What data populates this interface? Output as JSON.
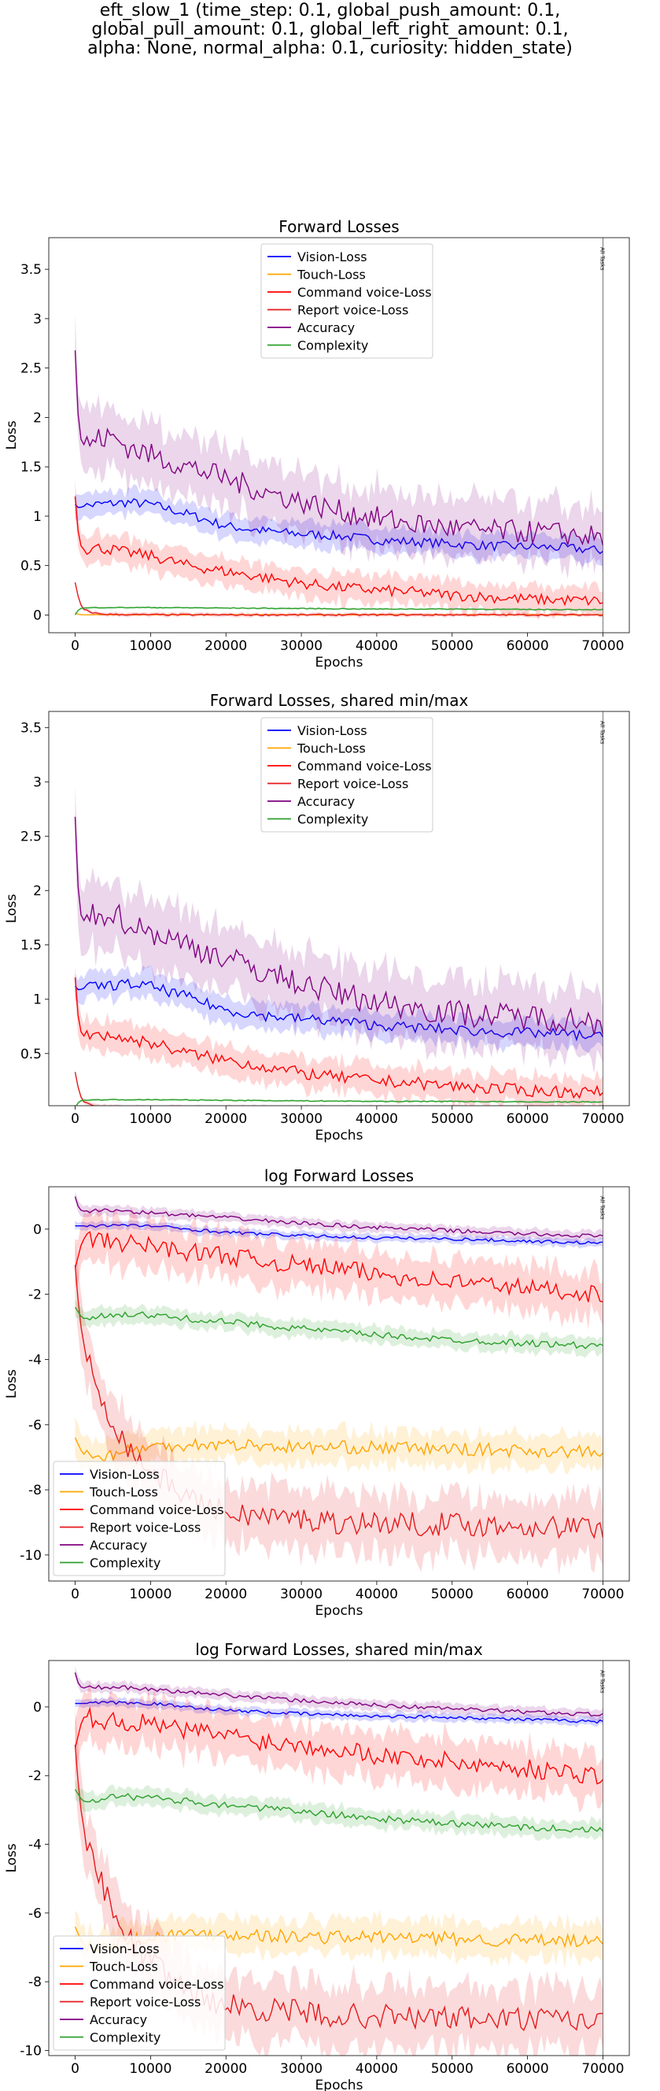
{
  "figure": {
    "suptitle": [
      "eft_slow_1 (time_step: 0.1, global_push_amount: 0.1,",
      "global_pull_amount: 0.1, global_left_right_amount: 0.1,",
      "alpha: None, normal_alpha: 0.1, curiosity: hidden_state)"
    ]
  },
  "chart_data": [
    {
      "type": "line",
      "title": "Forward Losses",
      "xlabel": "Epochs",
      "ylabel": "Loss",
      "xlim": [
        -3500,
        73500
      ],
      "ylim": [
        -0.18,
        3.82
      ],
      "xticks": [
        0,
        10000,
        20000,
        30000,
        40000,
        50000,
        60000,
        70000
      ],
      "yticks": [
        0.0,
        0.5,
        1.0,
        1.5,
        2.0,
        2.5,
        3.0,
        3.5
      ],
      "legend_position": "upper center",
      "vline": {
        "x": 70000,
        "label": "All Tasks"
      },
      "series": [
        {
          "name": "Vision-Loss",
          "color": "#0000ff",
          "x": [
            0,
            500,
            1000,
            3000,
            5000,
            7000,
            10000,
            15000,
            20000,
            25000,
            30000,
            35000,
            40000,
            45000,
            50000,
            55000,
            60000,
            65000,
            70000
          ],
          "y": [
            1.12,
            1.08,
            1.1,
            1.12,
            1.13,
            1.14,
            1.12,
            1.02,
            0.9,
            0.85,
            0.82,
            0.8,
            0.76,
            0.74,
            0.72,
            0.7,
            0.69,
            0.68,
            0.65
          ],
          "band": 0.12
        },
        {
          "name": "Touch-Loss",
          "color": "#ffa500",
          "x": [
            0,
            500,
            1000,
            3000,
            10000,
            20000,
            30000,
            40000,
            50000,
            60000,
            70000
          ],
          "y": [
            0.02,
            0.004,
            0.002,
            0.002,
            0.002,
            0.002,
            0.002,
            0.002,
            0.002,
            0.002,
            0.002
          ],
          "band": 0.004
        },
        {
          "name": "Command voice-Loss",
          "color": "#ff0000",
          "x": [
            0,
            500,
            1000,
            3000,
            5000,
            7000,
            10000,
            15000,
            20000,
            25000,
            30000,
            35000,
            40000,
            45000,
            50000,
            55000,
            60000,
            65000,
            70000
          ],
          "y": [
            1.2,
            0.75,
            0.66,
            0.68,
            0.66,
            0.63,
            0.6,
            0.5,
            0.44,
            0.38,
            0.32,
            0.28,
            0.25,
            0.23,
            0.2,
            0.18,
            0.16,
            0.15,
            0.14
          ],
          "band": 0.14
        },
        {
          "name": "Report voice-Loss",
          "color": "#e41a1c",
          "x": [
            0,
            500,
            1000,
            2000,
            3000,
            5000,
            10000,
            20000,
            30000,
            40000,
            50000,
            60000,
            70000
          ],
          "y": [
            0.33,
            0.15,
            0.06,
            0.03,
            0.012,
            0.005,
            0.002,
            0.001,
            0.001,
            0.001,
            0.001,
            0.001,
            0.001
          ],
          "band": 0.02
        },
        {
          "name": "Accuracy",
          "color": "#800080",
          "x": [
            0,
            500,
            1000,
            3000,
            5000,
            7000,
            10000,
            15000,
            20000,
            25000,
            30000,
            35000,
            40000,
            45000,
            50000,
            55000,
            60000,
            65000,
            70000
          ],
          "y": [
            2.68,
            1.85,
            1.72,
            1.78,
            1.8,
            1.7,
            1.62,
            1.5,
            1.38,
            1.25,
            1.15,
            1.05,
            0.98,
            0.92,
            0.88,
            0.85,
            0.84,
            0.82,
            0.78
          ],
          "band": 0.3
        },
        {
          "name": "Complexity",
          "color": "#2ca02c",
          "x": [
            0,
            500,
            1000,
            3000,
            10000,
            20000,
            30000,
            40000,
            50000,
            60000,
            70000
          ],
          "y": [
            0.0,
            0.06,
            0.07,
            0.075,
            0.075,
            0.07,
            0.065,
            0.06,
            0.06,
            0.055,
            0.055
          ],
          "band": 0.01
        }
      ]
    },
    {
      "type": "line",
      "title": "Forward Losses, shared min/max",
      "xlabel": "Epochs",
      "ylabel": "Loss",
      "xlim": [
        -3500,
        73500
      ],
      "ylim": [
        0.02,
        3.65
      ],
      "xticks": [
        0,
        10000,
        20000,
        30000,
        40000,
        50000,
        60000,
        70000
      ],
      "yticks": [
        0.5,
        1.0,
        1.5,
        2.0,
        2.5,
        3.0,
        3.5
      ],
      "legend_position": "upper center",
      "vline": {
        "x": 70000,
        "label": "All Tasks"
      },
      "series": [
        {
          "name": "Vision-Loss",
          "color": "#0000ff",
          "x": [
            0,
            500,
            1000,
            3000,
            5000,
            7000,
            10000,
            15000,
            20000,
            25000,
            30000,
            35000,
            40000,
            45000,
            50000,
            55000,
            60000,
            65000,
            70000
          ],
          "y": [
            1.12,
            1.08,
            1.1,
            1.12,
            1.13,
            1.14,
            1.12,
            1.02,
            0.9,
            0.85,
            0.82,
            0.8,
            0.76,
            0.74,
            0.72,
            0.7,
            0.69,
            0.68,
            0.65
          ],
          "band": 0.12
        },
        {
          "name": "Touch-Loss",
          "color": "#ffa500",
          "x": [
            0,
            500,
            1000,
            3000,
            10000,
            20000,
            30000,
            40000,
            50000,
            60000,
            70000
          ],
          "y": [
            0.02,
            0.004,
            0.002,
            0.002,
            0.002,
            0.002,
            0.002,
            0.002,
            0.002,
            0.002,
            0.002
          ],
          "band": 0.004
        },
        {
          "name": "Command voice-Loss",
          "color": "#ff0000",
          "x": [
            0,
            500,
            1000,
            3000,
            5000,
            7000,
            10000,
            15000,
            20000,
            25000,
            30000,
            35000,
            40000,
            45000,
            50000,
            55000,
            60000,
            65000,
            70000
          ],
          "y": [
            1.2,
            0.75,
            0.66,
            0.68,
            0.66,
            0.63,
            0.6,
            0.5,
            0.44,
            0.38,
            0.32,
            0.28,
            0.25,
            0.23,
            0.2,
            0.18,
            0.16,
            0.15,
            0.14
          ],
          "band": 0.14
        },
        {
          "name": "Report voice-Loss",
          "color": "#e41a1c",
          "x": [
            0,
            500,
            1000,
            2000,
            3000,
            5000,
            10000,
            20000,
            30000,
            40000,
            50000,
            60000,
            70000
          ],
          "y": [
            0.33,
            0.15,
            0.06,
            0.03,
            0.012,
            0.005,
            0.002,
            0.001,
            0.001,
            0.001,
            0.001,
            0.001,
            0.001
          ],
          "band": 0.02
        },
        {
          "name": "Accuracy",
          "color": "#800080",
          "x": [
            0,
            500,
            1000,
            3000,
            5000,
            7000,
            10000,
            15000,
            20000,
            25000,
            30000,
            35000,
            40000,
            45000,
            50000,
            55000,
            60000,
            65000,
            70000
          ],
          "y": [
            2.68,
            1.85,
            1.72,
            1.78,
            1.8,
            1.7,
            1.62,
            1.5,
            1.38,
            1.25,
            1.15,
            1.05,
            0.98,
            0.92,
            0.88,
            0.85,
            0.84,
            0.82,
            0.78
          ],
          "band": 0.3
        },
        {
          "name": "Complexity",
          "color": "#2ca02c",
          "x": [
            0,
            500,
            1000,
            3000,
            10000,
            20000,
            30000,
            40000,
            50000,
            60000,
            70000
          ],
          "y": [
            0.0,
            0.06,
            0.07,
            0.075,
            0.075,
            0.07,
            0.065,
            0.06,
            0.06,
            0.055,
            0.055
          ],
          "band": 0.01
        }
      ]
    },
    {
      "type": "line",
      "title": "log Forward Losses",
      "xlabel": "Epochs",
      "ylabel": "Loss",
      "xlim": [
        -3500,
        73500
      ],
      "ylim": [
        -10.8,
        1.3
      ],
      "xticks": [
        0,
        10000,
        20000,
        30000,
        40000,
        50000,
        60000,
        70000
      ],
      "yticks": [
        -10,
        -8,
        -6,
        -4,
        -2,
        0
      ],
      "legend_position": "lower left",
      "vline": {
        "x": 70000,
        "label": "All Tasks"
      },
      "series": [
        {
          "name": "Vision-Loss",
          "color": "#0000ff",
          "x": [
            0,
            1000,
            5000,
            10000,
            20000,
            30000,
            40000,
            50000,
            60000,
            70000
          ],
          "y": [
            0.1,
            0.1,
            0.12,
            0.1,
            -0.1,
            -0.2,
            -0.27,
            -0.3,
            -0.37,
            -0.43
          ],
          "band": 0.12
        },
        {
          "name": "Touch-Loss",
          "color": "#ffa500",
          "x": [
            0,
            1000,
            3000,
            5000,
            8000,
            10000,
            15000,
            20000,
            30000,
            40000,
            50000,
            60000,
            70000
          ],
          "y": [
            -6.4,
            -6.9,
            -7.0,
            -6.9,
            -6.75,
            -6.7,
            -6.6,
            -6.6,
            -6.7,
            -6.7,
            -6.75,
            -6.8,
            -6.85
          ],
          "band": 0.5
        },
        {
          "name": "Command voice-Loss",
          "color": "#ff0000",
          "x": [
            0,
            1000,
            5000,
            10000,
            15000,
            20000,
            25000,
            30000,
            35000,
            40000,
            45000,
            50000,
            55000,
            60000,
            65000,
            70000
          ],
          "y": [
            -1.2,
            -0.3,
            -0.4,
            -0.5,
            -0.7,
            -0.8,
            -1.0,
            -1.1,
            -1.2,
            -1.4,
            -1.5,
            -1.6,
            -1.7,
            -1.8,
            -1.9,
            -2.0
          ],
          "band": 0.7
        },
        {
          "name": "Report voice-Loss",
          "color": "#e41a1c",
          "x": [
            0,
            500,
            1000,
            2000,
            3000,
            4000,
            5000,
            7000,
            9000,
            11000,
            13000,
            15000,
            17000,
            19000,
            20000,
            25000,
            30000,
            35000,
            40000,
            45000,
            50000,
            55000,
            60000,
            65000,
            70000
          ],
          "y": [
            -1.1,
            -2.5,
            -3.4,
            -4.2,
            -4.9,
            -5.4,
            -5.9,
            -6.7,
            -7.2,
            -7.6,
            -7.9,
            -8.2,
            -8.5,
            -8.6,
            -8.7,
            -8.8,
            -8.9,
            -9.0,
            -9.0,
            -9.05,
            -9.05,
            -9.1,
            -9.1,
            -9.15,
            -9.15
          ],
          "band": 0.9
        },
        {
          "name": "Accuracy",
          "color": "#800080",
          "x": [
            0,
            500,
            1000,
            5000,
            10000,
            20000,
            30000,
            40000,
            50000,
            60000,
            70000
          ],
          "y": [
            1.0,
            0.62,
            0.55,
            0.58,
            0.5,
            0.35,
            0.18,
            0.05,
            -0.05,
            -0.15,
            -0.22
          ],
          "band": 0.15
        },
        {
          "name": "Complexity",
          "color": "#2ca02c",
          "x": [
            0,
            1000,
            5000,
            10000,
            20000,
            30000,
            40000,
            50000,
            60000,
            70000
          ],
          "y": [
            -2.4,
            -2.75,
            -2.6,
            -2.65,
            -2.85,
            -3.05,
            -3.25,
            -3.4,
            -3.5,
            -3.6
          ],
          "band": 0.25
        }
      ]
    },
    {
      "type": "line",
      "title": "log Forward Losses, shared min/max",
      "xlabel": "Epochs",
      "ylabel": "Loss",
      "xlim": [
        -3500,
        73500
      ],
      "ylim": [
        -10.15,
        1.35
      ],
      "xticks": [
        0,
        10000,
        20000,
        30000,
        40000,
        50000,
        60000,
        70000
      ],
      "yticks": [
        -10,
        -8,
        -6,
        -4,
        -2,
        0
      ],
      "legend_position": "lower left",
      "vline": {
        "x": 70000,
        "label": "All Tasks"
      },
      "series": [
        {
          "name": "Vision-Loss",
          "color": "#0000ff",
          "x": [
            0,
            1000,
            5000,
            10000,
            20000,
            30000,
            40000,
            50000,
            60000,
            70000
          ],
          "y": [
            0.1,
            0.1,
            0.12,
            0.1,
            -0.1,
            -0.2,
            -0.27,
            -0.3,
            -0.37,
            -0.43
          ],
          "band": 0.12
        },
        {
          "name": "Touch-Loss",
          "color": "#ffa500",
          "x": [
            0,
            1000,
            3000,
            5000,
            8000,
            10000,
            15000,
            20000,
            30000,
            40000,
            50000,
            60000,
            70000
          ],
          "y": [
            -6.4,
            -6.9,
            -7.0,
            -6.9,
            -6.75,
            -6.7,
            -6.6,
            -6.6,
            -6.7,
            -6.7,
            -6.75,
            -6.8,
            -6.85
          ],
          "band": 0.5
        },
        {
          "name": "Command voice-Loss",
          "color": "#ff0000",
          "x": [
            0,
            1000,
            5000,
            10000,
            15000,
            20000,
            25000,
            30000,
            35000,
            40000,
            45000,
            50000,
            55000,
            60000,
            65000,
            70000
          ],
          "y": [
            -1.2,
            -0.3,
            -0.4,
            -0.5,
            -0.7,
            -0.8,
            -1.0,
            -1.1,
            -1.2,
            -1.4,
            -1.5,
            -1.6,
            -1.7,
            -1.8,
            -1.9,
            -2.0
          ],
          "band": 0.7
        },
        {
          "name": "Report voice-Loss",
          "color": "#e41a1c",
          "x": [
            0,
            500,
            1000,
            2000,
            3000,
            4000,
            5000,
            7000,
            9000,
            11000,
            13000,
            15000,
            17000,
            19000,
            20000,
            25000,
            30000,
            35000,
            40000,
            45000,
            50000,
            55000,
            60000,
            65000,
            70000
          ],
          "y": [
            -1.1,
            -2.5,
            -3.4,
            -4.2,
            -4.9,
            -5.4,
            -5.9,
            -6.7,
            -7.2,
            -7.6,
            -7.9,
            -8.2,
            -8.5,
            -8.6,
            -8.7,
            -8.8,
            -8.9,
            -9.0,
            -9.0,
            -9.05,
            -9.05,
            -9.1,
            -9.1,
            -9.15,
            -9.15
          ],
          "band": 0.9
        },
        {
          "name": "Accuracy",
          "color": "#800080",
          "x": [
            0,
            500,
            1000,
            5000,
            10000,
            20000,
            30000,
            40000,
            50000,
            60000,
            70000
          ],
          "y": [
            1.0,
            0.62,
            0.55,
            0.58,
            0.5,
            0.35,
            0.18,
            0.05,
            -0.05,
            -0.15,
            -0.22
          ],
          "band": 0.15
        },
        {
          "name": "Complexity",
          "color": "#2ca02c",
          "x": [
            0,
            1000,
            5000,
            10000,
            20000,
            30000,
            40000,
            50000,
            60000,
            70000
          ],
          "y": [
            -2.4,
            -2.75,
            -2.6,
            -2.65,
            -2.85,
            -3.05,
            -3.25,
            -3.4,
            -3.5,
            -3.6
          ],
          "band": 0.25
        }
      ]
    }
  ]
}
